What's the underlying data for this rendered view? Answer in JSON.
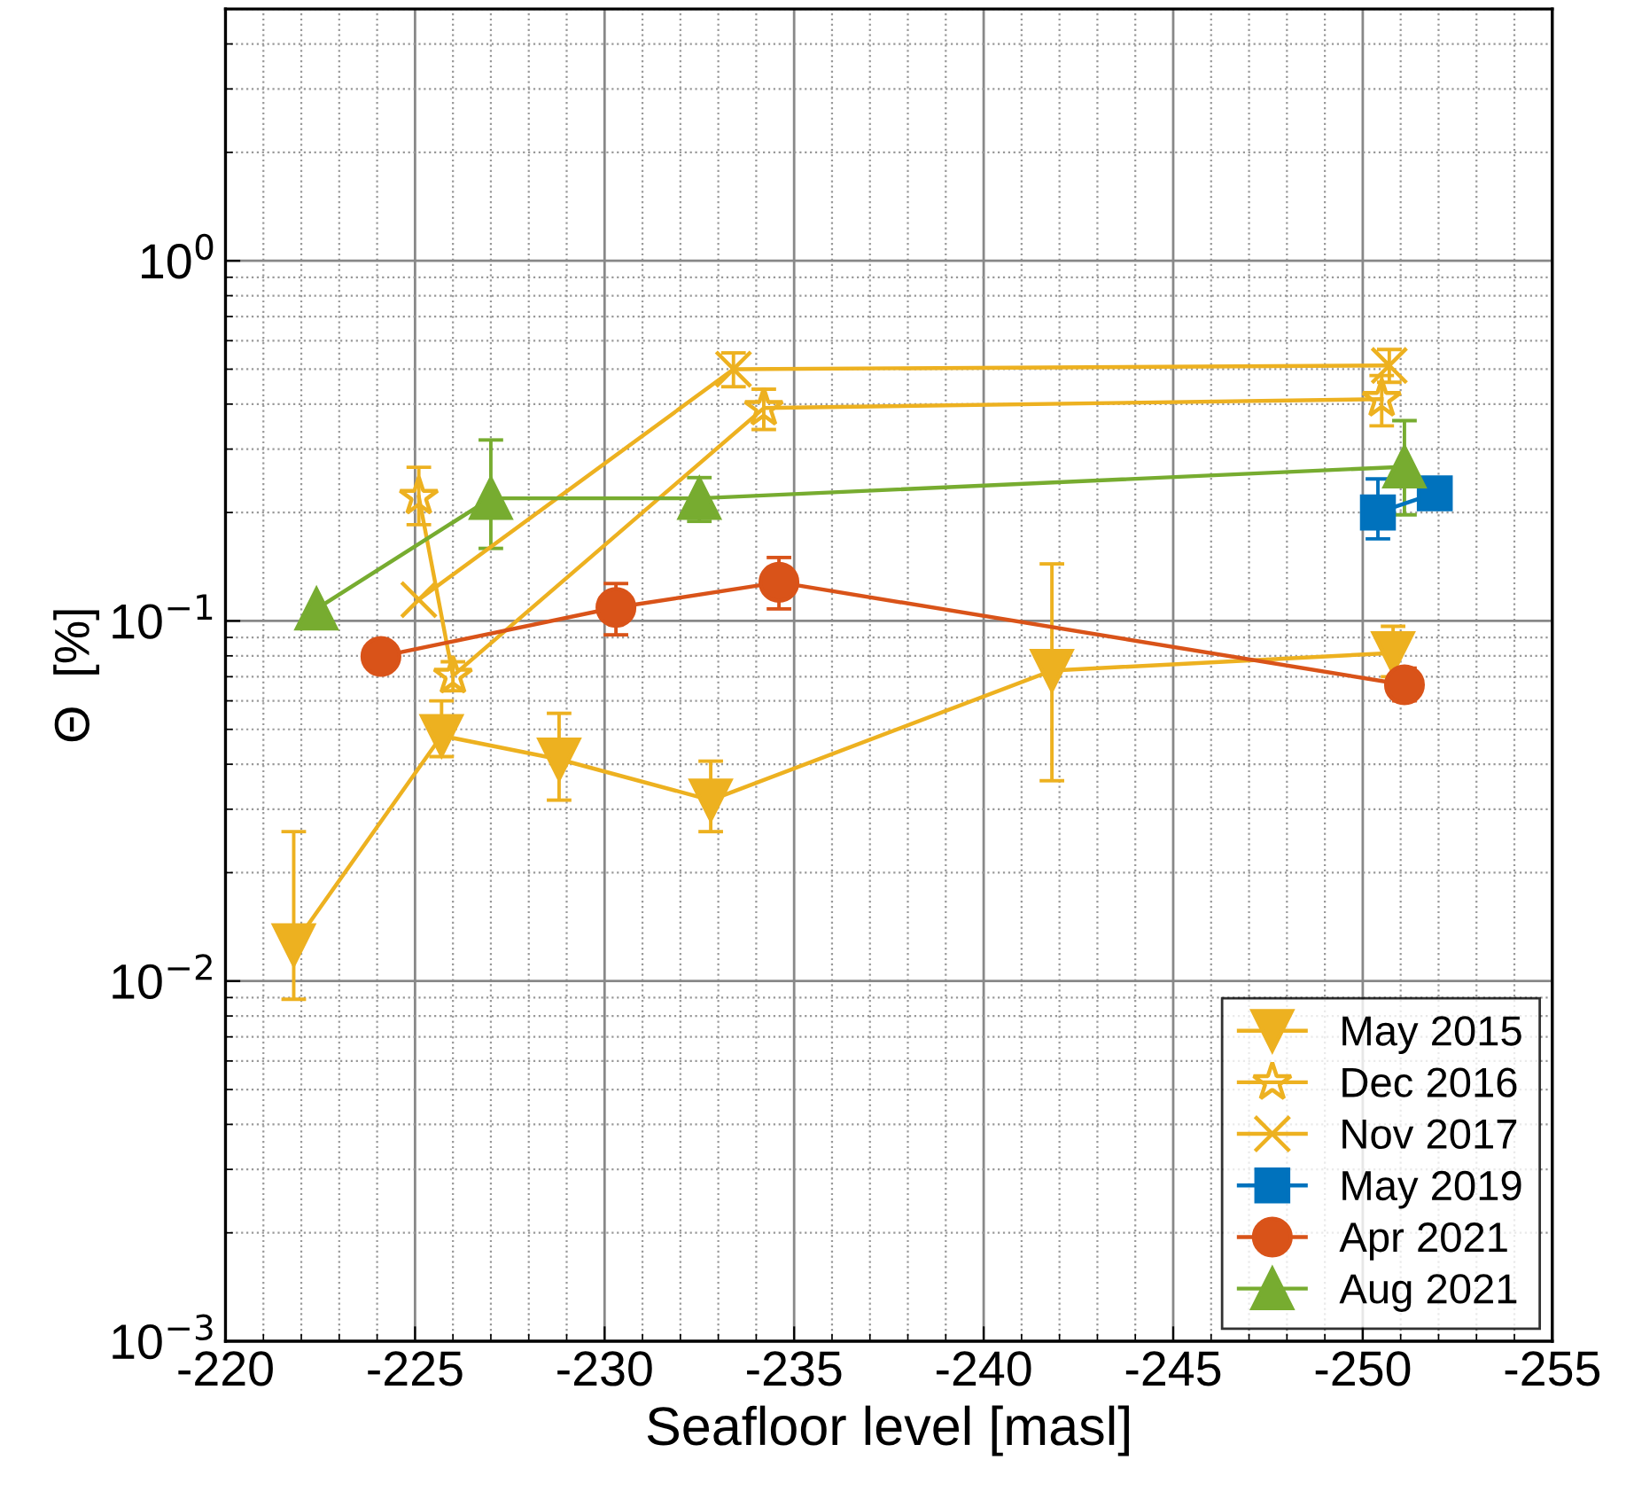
{
  "chart_data": {
    "type": "line",
    "xlabel": "Seafloor level [masl]",
    "ylabel": "Θ  [%]",
    "xlim": [
      -220,
      -255
    ],
    "xticks": [
      -220,
      -225,
      -230,
      -235,
      -240,
      -245,
      -250,
      -255
    ],
    "ylim": [
      0.001,
      5
    ],
    "yticks": [
      {
        "value": 0.001,
        "label": "10$^{−3}$"
      },
      {
        "value": 0.01,
        "label": "10$^{−2}$"
      },
      {
        "value": 0.1,
        "label": "10$^{−1}$"
      },
      {
        "value": 1,
        "label": "10$^{0}$"
      }
    ],
    "log": "y",
    "grid": true,
    "legend": "bottom right",
    "line_style": "solid",
    "series": [
      {
        "name": "May 2015",
        "color": "#edb120",
        "marker": "triangle_down",
        "x": [
          -221.8,
          -225.7,
          -228.8,
          -232.8,
          -241.8,
          -250.8
        ],
        "values": [
          0.0126,
          0.048,
          0.0413,
          0.0318,
          0.0728,
          0.0815
        ],
        "errors": [
          [
            0.0089,
            0.026
          ],
          [
            0.042,
            0.06
          ],
          [
            0.0318,
            0.0554
          ],
          [
            0.026,
            0.0408
          ],
          [
            0.036,
            0.144
          ],
          [
            0.07,
            0.0966
          ]
        ]
      },
      {
        "name": "Dec 2016",
        "color": "#edb120",
        "marker": "star",
        "x": [
          -225.1,
          -226.0,
          -234.2,
          -250.5
        ],
        "values": [
          0.221,
          0.0704,
          0.39,
          0.413
        ],
        "errors": [
          [
            0.185,
            0.267
          ],
          [
            0.064,
            0.077
          ],
          [
            0.34,
            0.44
          ],
          [
            0.348,
            0.48
          ]
        ]
      },
      {
        "name": "Nov 2017",
        "color": "#edb120",
        "marker": "cross",
        "x": [
          -225.1,
          -233.4,
          -250.7
        ],
        "values": [
          0.1146,
          0.5,
          0.512
        ],
        "errors": [
          null,
          [
            0.447,
            0.555
          ],
          [
            0.46,
            0.567
          ]
        ]
      },
      {
        "name": "May 2019",
        "color": "#0072bd",
        "marker": "square",
        "x": [
          -250.4,
          -251.9
        ],
        "values": [
          0.2,
          0.226
        ],
        "errors": [
          [
            0.169,
            0.248
          ],
          null
        ]
      },
      {
        "name": "Apr 2021",
        "color": "#d95319",
        "marker": "circle",
        "x": [
          -224.1,
          -230.3,
          -234.6,
          -251.1
        ],
        "values": [
          0.0797,
          0.109,
          0.128,
          0.0665
        ],
        "errors": [
          null,
          [
            0.0915,
            0.127
          ],
          [
            0.108,
            0.15
          ],
          [
            0.06,
            0.074
          ]
        ]
      },
      {
        "name": "Aug 2021",
        "color": "#77ac30",
        "marker": "triangle",
        "x": [
          -222.4,
          -227.0,
          -232.5,
          -251.1
        ],
        "values": [
          0.108,
          0.219,
          0.219,
          0.268
        ],
        "errors": [
          null,
          [
            0.159,
            0.318
          ],
          [
            0.189,
            0.25
          ],
          [
            0.197,
            0.36
          ]
        ]
      }
    ]
  }
}
